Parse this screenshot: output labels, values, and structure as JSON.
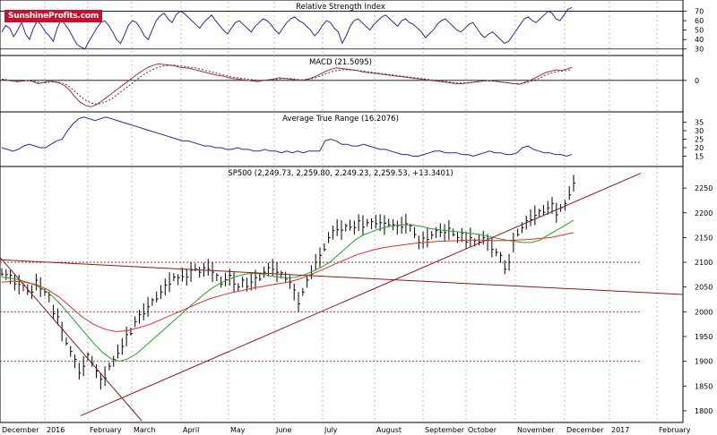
{
  "logo": {
    "text": "SunshineProfits.com"
  },
  "colors": {
    "price_bar": "#000000",
    "ma_fast": "#2aa02a",
    "ma_slow": "#e03030",
    "trendline": "#8b1a1a",
    "macd_line": "#b03030",
    "macd_signal": "#3030a0",
    "rsi_line": "#2a2a9a",
    "atr_line": "#2a2a9a",
    "grid": "#b0b0b0",
    "resistance": "#a01010"
  },
  "chart_data": [
    {
      "type": "line",
      "title": "Relative Strength Index",
      "yticks": [
        30,
        40,
        50,
        60,
        70
      ],
      "ylim": [
        25,
        80
      ],
      "reference_lines": [
        30,
        70
      ],
      "series": [
        {
          "values": [
            48,
            55,
            52,
            43,
            50,
            58,
            46,
            40,
            52,
            60,
            55,
            48,
            44,
            38,
            52,
            61,
            56,
            50,
            42,
            35,
            32,
            30,
            38,
            45,
            52,
            58,
            60,
            55,
            48,
            40,
            36,
            45,
            55,
            60,
            58,
            52,
            44,
            40,
            50,
            60,
            65,
            68,
            62,
            58,
            66,
            70,
            68,
            64,
            60,
            56,
            52,
            58,
            62,
            66,
            60,
            55,
            50,
            46,
            52,
            58,
            60,
            56,
            52,
            48,
            54,
            58,
            62,
            60,
            56,
            50,
            46,
            52,
            58,
            62,
            64,
            60,
            58,
            54,
            50,
            44,
            48,
            55,
            60,
            58,
            52,
            48,
            36,
            44,
            54,
            60,
            62,
            58,
            54,
            50,
            56,
            60,
            64,
            66,
            62,
            58,
            54,
            60,
            62,
            58,
            56,
            52,
            48,
            42,
            46,
            50,
            56,
            60,
            62,
            58,
            54,
            50,
            48,
            52,
            56,
            58,
            52,
            46,
            42,
            46,
            48,
            44,
            40,
            36,
            38,
            44,
            50,
            56,
            62,
            64,
            60,
            58,
            62,
            66,
            70,
            68,
            62,
            60,
            66,
            72,
            74
          ]
        }
      ]
    },
    {
      "type": "line",
      "title": "MACD (21.5095)",
      "yticks": [
        0
      ],
      "ylim": [
        -45,
        35
      ],
      "series": [
        {
          "values": [
            2,
            0,
            -1,
            -2,
            -1,
            0,
            -2,
            -5,
            -3,
            -1,
            -2,
            -4,
            -8,
            -15,
            -25,
            -33,
            -38,
            -40,
            -37,
            -32,
            -26,
            -20,
            -14,
            -8,
            -2,
            4,
            10,
            15,
            20,
            23,
            25,
            24,
            23,
            22,
            20,
            19,
            18,
            16,
            14,
            12,
            10,
            8,
            7,
            5,
            3,
            2,
            1,
            0,
            -1,
            -2,
            0,
            1,
            2,
            4,
            3,
            2,
            1,
            0,
            1,
            3,
            6,
            10,
            14,
            17,
            19,
            18,
            17,
            16,
            15,
            13,
            12,
            11,
            10,
            9,
            8,
            7,
            6,
            5,
            4,
            3,
            2,
            1,
            0,
            -1,
            -2,
            -3,
            -4,
            -5,
            -5,
            -4,
            -3,
            -2,
            -1,
            0,
            -1,
            -2,
            -3,
            -4,
            -5,
            -6,
            -3,
            0,
            4,
            8,
            12,
            14,
            16,
            15,
            17,
            20
          ]
        },
        {
          "values": [
            2,
            1,
            0,
            -1,
            -1,
            -1,
            -1,
            -3,
            -4,
            -3,
            -2,
            -3,
            -5,
            -10,
            -17,
            -24,
            -30,
            -34,
            -36,
            -35,
            -32,
            -28,
            -22,
            -16,
            -10,
            -4,
            2,
            8,
            13,
            17,
            20,
            22,
            23,
            23,
            22,
            21,
            20,
            19,
            17,
            15,
            13,
            11,
            9,
            7,
            5,
            4,
            3,
            2,
            1,
            0,
            0,
            0,
            1,
            2,
            3,
            3,
            2,
            1,
            1,
            2,
            4,
            7,
            10,
            13,
            15,
            16,
            16,
            16,
            15,
            14,
            13,
            12,
            11,
            10,
            9,
            8,
            7,
            6,
            5,
            4,
            3,
            2,
            1,
            0,
            -1,
            -2,
            -3,
            -4,
            -4,
            -4,
            -3,
            -2,
            -1,
            -1,
            -1,
            -2,
            -3,
            -4,
            -5,
            -5,
            -4,
            -2,
            1,
            4,
            8,
            11,
            13,
            14,
            15,
            17
          ]
        }
      ]
    },
    {
      "type": "line",
      "title": "Average True Range (16.2076)",
      "yticks": [
        15,
        20,
        25,
        30,
        35
      ],
      "ylim": [
        10,
        40
      ],
      "series": [
        {
          "values": [
            20,
            19,
            18,
            19,
            21,
            22,
            21,
            20,
            20,
            22,
            24,
            25,
            30,
            34,
            37,
            38,
            37,
            36,
            37,
            38,
            37,
            36,
            35,
            34,
            33,
            32,
            31,
            30,
            29,
            28,
            27,
            26,
            25,
            24,
            24,
            23,
            22,
            21,
            21,
            20,
            20,
            19,
            19,
            20,
            19,
            19,
            18,
            18,
            19,
            18,
            18,
            17,
            18,
            17,
            18,
            17,
            18,
            18,
            18,
            24,
            25,
            24,
            22,
            22,
            21,
            21,
            22,
            21,
            20,
            19,
            19,
            18,
            17,
            16,
            16,
            15,
            15,
            16,
            17,
            18,
            18,
            17,
            17,
            17,
            16,
            16,
            15,
            16,
            17,
            18,
            17,
            17,
            16,
            16,
            17,
            20,
            21,
            19,
            18,
            17,
            17,
            16,
            16,
            15,
            16
          ]
        }
      ]
    },
    {
      "type": "line",
      "title": "SP500 (2,249.73, 2,259.80, 2,249.23, 2,259.53, +13.3401)",
      "ylim": [
        1780,
        2290
      ],
      "yticks": [
        1800,
        1850,
        1900,
        1950,
        2000,
        2050,
        2100,
        2150,
        2200,
        2250
      ],
      "xticks": [
        "December",
        "2016",
        "February",
        "March",
        "April",
        "May",
        "June",
        "July",
        "August",
        "September",
        "October",
        "November",
        "December",
        "2017",
        "February"
      ],
      "horizontal_levels": [
        1900,
        2000,
        2100
      ],
      "price": [
        2080,
        2075,
        2070,
        2060,
        2055,
        2050,
        2045,
        2040,
        2060,
        2050,
        2040,
        2030,
        2000,
        1990,
        1960,
        1940,
        1920,
        1900,
        1880,
        1890,
        1910,
        1900,
        1880,
        1860,
        1870,
        1890,
        1900,
        1920,
        1930,
        1950,
        1960,
        1980,
        1990,
        2000,
        2010,
        2020,
        2030,
        2040,
        2050,
        2060,
        2070,
        2065,
        2075,
        2070,
        2080,
        2090,
        2080,
        2085,
        2090,
        2080,
        2070,
        2060,
        2065,
        2070,
        2060,
        2050,
        2060,
        2055,
        2060,
        2065,
        2070,
        2080,
        2085,
        2090,
        2080,
        2075,
        2070,
        2060,
        2040,
        2020,
        2040,
        2060,
        2080,
        2100,
        2110,
        2130,
        2150,
        2160,
        2170,
        2165,
        2170,
        2175,
        2170,
        2180,
        2175,
        2180,
        2178,
        2182,
        2180,
        2175,
        2180,
        2176,
        2170,
        2175,
        2178,
        2170,
        2160,
        2140,
        2145,
        2150,
        2155,
        2160,
        2165,
        2160,
        2165,
        2160,
        2150,
        2155,
        2145,
        2150,
        2140,
        2145,
        2150,
        2140,
        2130,
        2120,
        2110,
        2090,
        2100,
        2140,
        2160,
        2170,
        2180,
        2190,
        2195,
        2200,
        2205,
        2210,
        2215,
        2200,
        2210,
        2215,
        2240,
        2260
      ],
      "ma_fast_values": [
        2070,
        2068,
        2065,
        2060,
        2054,
        2045,
        2032,
        2015,
        1995,
        1975,
        1955,
        1935,
        1918,
        1905,
        1900,
        1905,
        1915,
        1930,
        1945,
        1960,
        1975,
        1990,
        2005,
        2020,
        2035,
        2048,
        2058,
        2066,
        2072,
        2076,
        2078,
        2076,
        2072,
        2070,
        2068,
        2070,
        2075,
        2082,
        2090,
        2100,
        2115,
        2130,
        2145,
        2155,
        2162,
        2168,
        2172,
        2175,
        2176,
        2175,
        2172,
        2168,
        2166,
        2164,
        2162,
        2160,
        2158,
        2156,
        2152,
        2148,
        2145,
        2142,
        2140,
        2140,
        2145,
        2155,
        2165,
        2175,
        2185
      ],
      "ma_slow_values": [
        2060,
        2062,
        2060,
        2055,
        2045,
        2030,
        2010,
        1990,
        1975,
        1965,
        1960,
        1962,
        1968,
        1975,
        1985,
        1995,
        2005,
        2015,
        2025,
        2032,
        2038,
        2043,
        2048,
        2052,
        2056,
        2060,
        2066,
        2075,
        2085,
        2095,
        2105,
        2115,
        2122,
        2128,
        2132,
        2135,
        2138,
        2140,
        2142,
        2143,
        2144,
        2145,
        2145,
        2144,
        2144,
        2145,
        2146,
        2148,
        2150,
        2155,
        2160
      ],
      "trendlines": [
        {
          "from": [
            "Dec 2015",
            2110
          ],
          "to": [
            "Mar 2016",
            1780
          ]
        },
        {
          "from": [
            "Feb 2016",
            1790
          ],
          "to": [
            "Dec 2016",
            2280
          ]
        },
        {
          "from": [
            "Dec 2015",
            2105
          ],
          "to": [
            "Feb 2017",
            2035
          ]
        }
      ]
    }
  ]
}
